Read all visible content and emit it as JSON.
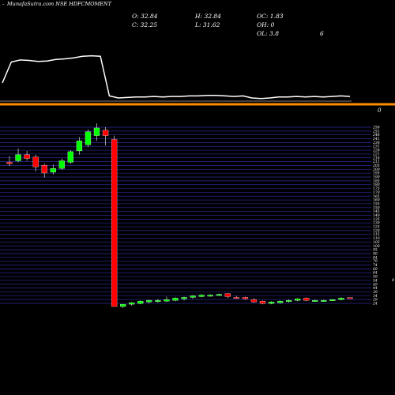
{
  "header": {
    "title": "MunafaSutra.com NSE HDFCMOMENT",
    "marker": "-"
  },
  "ohlc": {
    "open": "O: 32.84",
    "high": "H: 32.84",
    "change": "OC: 1.83",
    "close": "C: 32.25",
    "low": "L: 31.62",
    "oi": "OH: 0",
    "ol": "OL: 3.8",
    "extra": "6"
  },
  "top_label": "0",
  "side_label": "0",
  "colors": {
    "background": "#000000",
    "up": "#00ff00",
    "down": "#ff0000",
    "grid": "#2a2a9a",
    "volume_line": "#ffffff",
    "separator": "#ff8c00"
  },
  "chart_data": {
    "type": "candlestick",
    "ylim": [
      21,
      256
    ],
    "y_ticks": [
      "256",
      "251",
      "246",
      "241",
      "236",
      "231",
      "226",
      "221",
      "216",
      "211",
      "205",
      "200",
      "195",
      "190",
      "185",
      "180",
      "175",
      "170",
      "165",
      "160",
      "155",
      "150",
      "145",
      "140",
      "135",
      "130",
      "125",
      "120",
      "115",
      "110",
      "105",
      "100",
      "95",
      "90",
      "84",
      "79",
      "74",
      "69",
      "64",
      "59",
      "54",
      "49",
      "44",
      "39",
      "34",
      "29",
      "24"
    ],
    "candles": [
      {
        "o": 210,
        "h": 218,
        "l": 205,
        "c": 208
      },
      {
        "o": 212,
        "h": 228,
        "l": 210,
        "c": 220
      },
      {
        "o": 220,
        "h": 225,
        "l": 212,
        "c": 215
      },
      {
        "o": 217,
        "h": 220,
        "l": 198,
        "c": 204
      },
      {
        "o": 206,
        "h": 208,
        "l": 190,
        "c": 196
      },
      {
        "o": 197,
        "h": 207,
        "l": 194,
        "c": 202
      },
      {
        "o": 202,
        "h": 215,
        "l": 200,
        "c": 212
      },
      {
        "o": 210,
        "h": 226,
        "l": 208,
        "c": 224
      },
      {
        "o": 225,
        "h": 243,
        "l": 220,
        "c": 238
      },
      {
        "o": 233,
        "h": 253,
        "l": 230,
        "c": 250
      },
      {
        "o": 245,
        "h": 261,
        "l": 238,
        "c": 255
      },
      {
        "o": 252,
        "h": 256,
        "l": 232,
        "c": 245
      },
      {
        "o": 240,
        "h": 245,
        "l": 21,
        "c": 21
      },
      {
        "o": 21,
        "h": 22,
        "l": 19,
        "c": 24
      },
      {
        "o": 24,
        "h": 27,
        "l": 22,
        "c": 26
      },
      {
        "o": 25,
        "h": 29,
        "l": 24,
        "c": 28
      },
      {
        "o": 27,
        "h": 30,
        "l": 25,
        "c": 29
      },
      {
        "o": 28,
        "h": 31,
        "l": 26,
        "c": 29
      },
      {
        "o": 28,
        "h": 34,
        "l": 27,
        "c": 30
      },
      {
        "o": 29,
        "h": 33,
        "l": 28,
        "c": 32
      },
      {
        "o": 31,
        "h": 34,
        "l": 29,
        "c": 33
      },
      {
        "o": 33,
        "h": 36,
        "l": 31,
        "c": 35
      },
      {
        "o": 34,
        "h": 37,
        "l": 33,
        "c": 36
      },
      {
        "o": 36,
        "h": 37,
        "l": 34,
        "c": 36
      },
      {
        "o": 36,
        "h": 38,
        "l": 35,
        "c": 37
      },
      {
        "o": 38,
        "h": 38,
        "l": 32,
        "c": 34
      },
      {
        "o": 33,
        "h": 35,
        "l": 31,
        "c": 32
      },
      {
        "o": 33,
        "h": 34,
        "l": 30,
        "c": 31
      },
      {
        "o": 30,
        "h": 32,
        "l": 26,
        "c": 27
      },
      {
        "o": 28,
        "h": 29,
        "l": 24,
        "c": 25
      },
      {
        "o": 25,
        "h": 28,
        "l": 24,
        "c": 27
      },
      {
        "o": 26,
        "h": 29,
        "l": 25,
        "c": 28
      },
      {
        "o": 28,
        "h": 30,
        "l": 26,
        "c": 29
      },
      {
        "o": 29,
        "h": 32,
        "l": 28,
        "c": 31
      },
      {
        "o": 32,
        "h": 33,
        "l": 28,
        "c": 29
      },
      {
        "o": 29,
        "h": 30,
        "l": 28,
        "c": 29
      },
      {
        "o": 28,
        "h": 30,
        "l": 28,
        "c": 29
      },
      {
        "o": 29,
        "h": 31,
        "l": 28,
        "c": 30
      },
      {
        "o": 30,
        "h": 33,
        "l": 29,
        "c": 32
      },
      {
        "o": 32.84,
        "h": 32.84,
        "l": 31.62,
        "c": 32.25
      }
    ],
    "volume": [
      0.35,
      0.75,
      0.79,
      0.78,
      0.76,
      0.77,
      0.8,
      0.81,
      0.83,
      0.86,
      0.87,
      0.86,
      0.1,
      0.06,
      0.07,
      0.08,
      0.08,
      0.09,
      0.08,
      0.09,
      0.09,
      0.1,
      0.1,
      0.11,
      0.11,
      0.1,
      0.09,
      0.1,
      0.06,
      0.05,
      0.06,
      0.08,
      0.08,
      0.09,
      0.08,
      0.09,
      0.08,
      0.09,
      0.1,
      0.09
    ]
  }
}
